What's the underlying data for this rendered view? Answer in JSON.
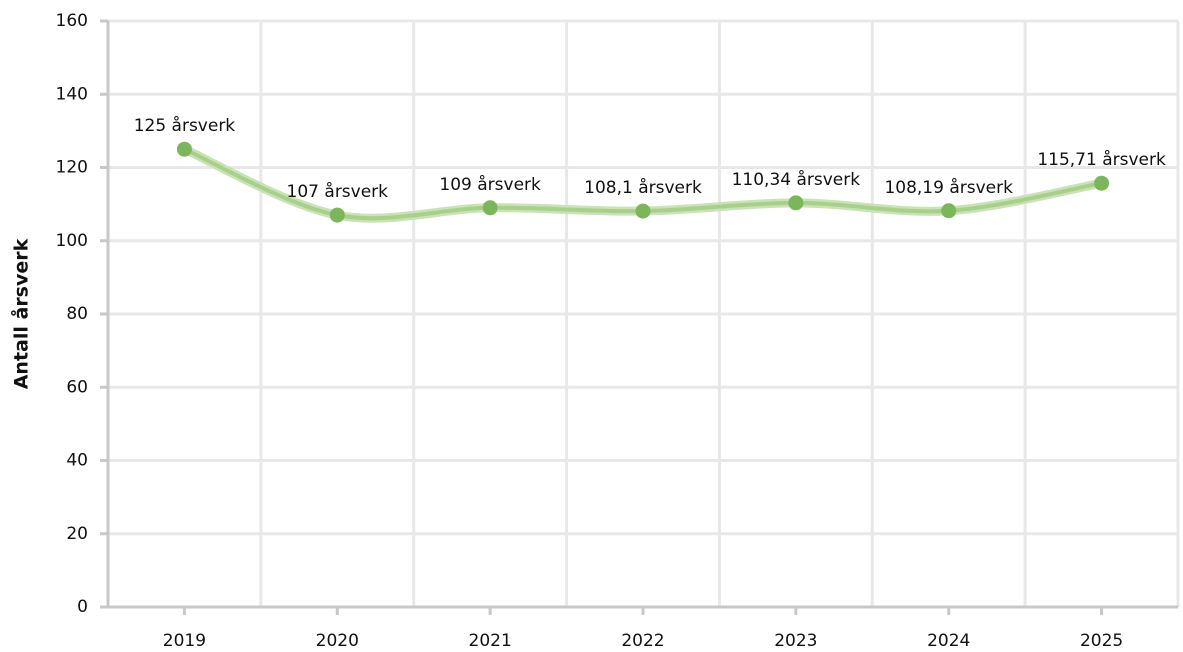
{
  "chart_data": {
    "type": "line",
    "y_label": "Antall årsverk",
    "categories": [
      "2019",
      "2020",
      "2021",
      "2022",
      "2023",
      "2024",
      "2025"
    ],
    "series": [
      {
        "color": "#7db55c",
        "values": [
          125,
          107,
          109,
          108.1,
          110.34,
          108.19,
          115.71
        ],
        "value_labels": [
          "125 årsverk",
          "107 årsverk",
          "109 årsverk",
          "108,1 årsverk",
          "110,34 årsverk",
          "108,19 årsverk",
          "115,71 årsverk"
        ]
      }
    ],
    "ylim": [
      0,
      160
    ],
    "yticks": [
      0,
      20,
      40,
      60,
      80,
      100,
      120,
      140,
      160
    ],
    "grid": true,
    "smooth": true
  }
}
